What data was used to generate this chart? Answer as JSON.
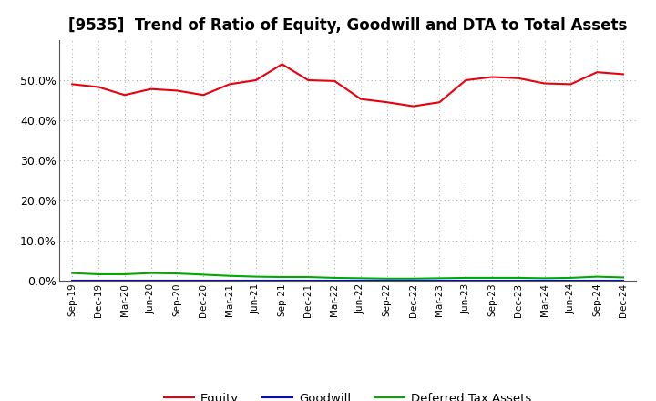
{
  "title": "[9535]  Trend of Ratio of Equity, Goodwill and DTA to Total Assets",
  "x_labels": [
    "Sep-19",
    "Dec-19",
    "Mar-20",
    "Jun-20",
    "Sep-20",
    "Dec-20",
    "Mar-21",
    "Jun-21",
    "Sep-21",
    "Dec-21",
    "Mar-22",
    "Jun-22",
    "Sep-22",
    "Dec-22",
    "Mar-23",
    "Jun-23",
    "Sep-23",
    "Dec-23",
    "Mar-24",
    "Jun-24",
    "Sep-24",
    "Dec-24"
  ],
  "equity": [
    0.49,
    0.483,
    0.463,
    0.478,
    0.474,
    0.463,
    0.49,
    0.5,
    0.54,
    0.5,
    0.498,
    0.453,
    0.445,
    0.435,
    0.445,
    0.5,
    0.508,
    0.505,
    0.492,
    0.49,
    0.52,
    0.515
  ],
  "goodwill": [
    0.0,
    0.0,
    0.0,
    0.0,
    0.0,
    0.0,
    0.0,
    0.0,
    0.0,
    0.0,
    0.0,
    0.0,
    0.0,
    0.0,
    0.0,
    0.0,
    0.0,
    0.0,
    0.0,
    0.0,
    0.0,
    0.0
  ],
  "dta": [
    0.019,
    0.016,
    0.016,
    0.019,
    0.018,
    0.015,
    0.012,
    0.01,
    0.009,
    0.009,
    0.007,
    0.006,
    0.005,
    0.005,
    0.006,
    0.007,
    0.007,
    0.007,
    0.006,
    0.007,
    0.01,
    0.008
  ],
  "equity_color": "#e8000d",
  "goodwill_color": "#0000ff",
  "dta_color": "#00aa00",
  "background_color": "#ffffff",
  "grid_color": "#b0b0b0",
  "ylim": [
    0.0,
    0.6
  ],
  "yticks": [
    0.0,
    0.1,
    0.2,
    0.3,
    0.4,
    0.5
  ],
  "title_fontsize": 12,
  "legend_labels": [
    "Equity",
    "Goodwill",
    "Deferred Tax Assets"
  ]
}
